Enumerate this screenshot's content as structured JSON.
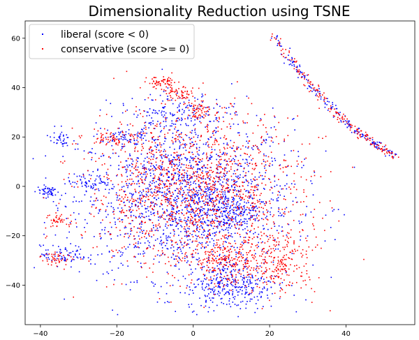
{
  "chart_data": {
    "type": "scatter",
    "title": "Dimensionality Reduction using TSNE",
    "xlabel": "",
    "ylabel": "",
    "xlim": [
      -44,
      58
    ],
    "ylim": [
      -56,
      67
    ],
    "xticks": [
      -40,
      -20,
      0,
      20,
      40
    ],
    "yticks": [
      -40,
      -20,
      0,
      20,
      40,
      60
    ],
    "grid": false,
    "legend_position": "top-left",
    "series": [
      {
        "name": "liberal (score < 0)",
        "color": "#0000ff",
        "marker": "point",
        "clusters": [
          {
            "kind": "blob",
            "cx": -2,
            "cy": -5,
            "sx": 14,
            "sy": 16,
            "count": 1700
          },
          {
            "kind": "blob",
            "cx": 10,
            "cy": -40,
            "sx": 6,
            "sy": 5,
            "count": 320
          },
          {
            "kind": "blob",
            "cx": 8,
            "cy": -10,
            "sx": 4,
            "sy": 5,
            "count": 200
          },
          {
            "kind": "blob",
            "cx": -38,
            "cy": -2,
            "sx": 1.5,
            "sy": 1.2,
            "count": 50
          },
          {
            "kind": "blob",
            "cx": -35,
            "cy": 19,
            "sx": 1.3,
            "sy": 1.5,
            "count": 35
          },
          {
            "kind": "blob",
            "cx": -34,
            "cy": -28,
            "sx": 3,
            "sy": 2,
            "count": 70
          },
          {
            "kind": "blob",
            "cx": -27,
            "cy": 2,
            "sx": 3,
            "sy": 2,
            "count": 60
          },
          {
            "kind": "blob",
            "cx": -4,
            "cy": 30,
            "sx": 6,
            "sy": 4,
            "count": 150
          },
          {
            "kind": "blob",
            "cx": -18,
            "cy": 20,
            "sx": 3,
            "sy": 2,
            "count": 60
          },
          {
            "kind": "arc",
            "x0": 21,
            "y0": 61,
            "x1": 53,
            "y1": 12,
            "spread": 0.7,
            "count": 180
          }
        ]
      },
      {
        "name": "conservative (score >= 0)",
        "color": "#ff0000",
        "marker": "point",
        "clusters": [
          {
            "kind": "blob",
            "cx": 0,
            "cy": -2,
            "sx": 14,
            "sy": 16,
            "count": 1500
          },
          {
            "kind": "blob",
            "cx": 22,
            "cy": -30,
            "sx": 5,
            "sy": 7,
            "count": 260
          },
          {
            "kind": "blob",
            "cx": 8,
            "cy": -30,
            "sx": 4,
            "sy": 4,
            "count": 180
          },
          {
            "kind": "blob",
            "cx": -8,
            "cy": 42,
            "sx": 2,
            "sy": 1.2,
            "count": 60
          },
          {
            "kind": "blob",
            "cx": -4,
            "cy": 37,
            "sx": 2,
            "sy": 2,
            "count": 60
          },
          {
            "kind": "blob",
            "cx": 2,
            "cy": 31,
            "sx": 2,
            "sy": 1.5,
            "count": 50
          },
          {
            "kind": "blob",
            "cx": -35,
            "cy": -14,
            "sx": 2,
            "sy": 1.5,
            "count": 40
          },
          {
            "kind": "blob",
            "cx": -36,
            "cy": -29,
            "sx": 2,
            "sy": 1.5,
            "count": 40
          },
          {
            "kind": "blob",
            "cx": -20,
            "cy": 20,
            "sx": 3,
            "sy": 2,
            "count": 60
          },
          {
            "kind": "arc",
            "x0": 21,
            "y0": 61,
            "x1": 53,
            "y1": 12,
            "spread": 0.7,
            "count": 180
          }
        ]
      }
    ]
  }
}
